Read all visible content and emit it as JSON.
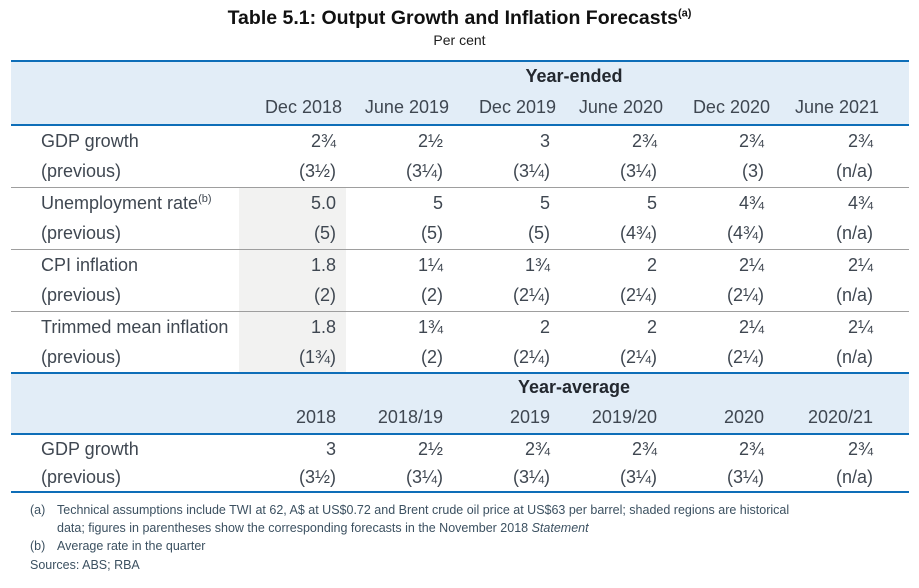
{
  "title": "Table 5.1: Output Growth and Inflation Forecasts",
  "title_superscript": "(a)",
  "subtitle": "Per cent",
  "colors": {
    "band_blue": "#e2edf7",
    "rule_blue": "#0e6eb8",
    "shaded_historical": "#f2f2f1",
    "divider_gray": "#9e9e9e",
    "body_text": "#3f4751",
    "footnote_text": "#3c5161"
  },
  "year_ended": {
    "section_label": "Year-ended",
    "columns": [
      "Dec 2018",
      "June 2019",
      "Dec 2019",
      "June 2020",
      "Dec 2020",
      "June 2021"
    ],
    "rows": [
      {
        "label": "GDP growth",
        "cells": [
          "2¾",
          "2½",
          "3",
          "2¾",
          "2¾",
          "2¾"
        ]
      },
      {
        "label": "(previous)",
        "cells": [
          "(3½)",
          "(3¼)",
          "(3¼)",
          "(3¼)",
          "(3)",
          "(n/a)"
        ]
      },
      {
        "label": "Unemployment rate",
        "label_sup": "(b)",
        "cells": [
          "5.0",
          "5",
          "5",
          "5",
          "4¾",
          "4¾"
        ]
      },
      {
        "label": "(previous)",
        "cells": [
          "(5)",
          "(5)",
          "(5)",
          "(4¾)",
          "(4¾)",
          "(n/a)"
        ]
      },
      {
        "label": "CPI inflation",
        "cells": [
          "1.8",
          "1¼",
          "1¾",
          "2",
          "2¼",
          "2¼"
        ]
      },
      {
        "label": "(previous)",
        "cells": [
          "(2)",
          "(2)",
          "(2¼)",
          "(2¼)",
          "(2¼)",
          "(n/a)"
        ]
      },
      {
        "label": "Trimmed mean inflation",
        "cells": [
          "1.8",
          "1¾",
          "2",
          "2",
          "2¼",
          "2¼"
        ]
      },
      {
        "label": "(previous)",
        "cells": [
          "(1¾)",
          "(2)",
          "(2¼)",
          "(2¼)",
          "(2¼)",
          "(n/a)"
        ]
      }
    ]
  },
  "year_average": {
    "section_label": "Year-average",
    "columns": [
      "2018",
      "2018/19",
      "2019",
      "2019/20",
      "2020",
      "2020/21"
    ],
    "rows": [
      {
        "label": "GDP growth",
        "cells": [
          "3",
          "2½",
          "2¾",
          "2¾",
          "2¾",
          "2¾"
        ]
      },
      {
        "label": "(previous)",
        "cells": [
          "(3½)",
          "(3¼)",
          "(3¼)",
          "(3¼)",
          "(3¼)",
          "(n/a)"
        ]
      }
    ]
  },
  "footnotes": {
    "a_marker": "(a)",
    "a_line1": "Technical assumptions include  TWI at 62, A$ at US$0.72 and Brent crude oil price at US$63 per barrel; shaded regions are historical",
    "a_line2_text": "data; figures in parentheses show the corresponding forecasts in the November 2018 ",
    "a_line2_italic": "Statement",
    "b_marker": "(b)",
    "b_text": "Average rate in the quarter",
    "sources": "Sources: ABS; RBA"
  }
}
